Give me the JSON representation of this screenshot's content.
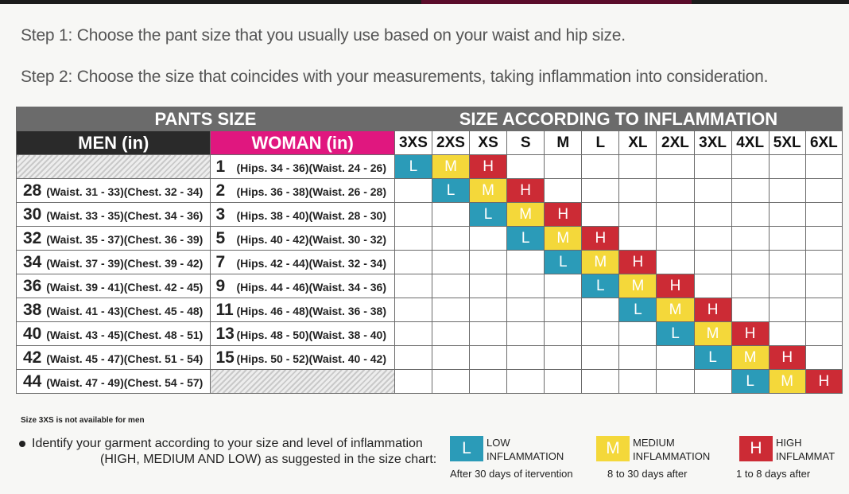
{
  "step1": "Step 1: Choose the pant size that you usually use based on your waist and hip size.",
  "step2": "Step 2: Choose the size that coincides with your measurements, taking inflammation into consideration.",
  "table": {
    "pants_header": "PANTS SIZE",
    "inflammation_header": "SIZE ACCORDING TO INFLAMMATION",
    "men_header": "MEN (in)",
    "woman_header": "WOMAN (in)",
    "sizes": [
      "3XS",
      "2XS",
      "XS",
      "S",
      "M",
      "L",
      "XL",
      "2XL",
      "3XL",
      "4XL",
      "5XL",
      "6XL"
    ],
    "rows": [
      {
        "men_num": "",
        "men_desc": "",
        "woman_num": "1",
        "woman_desc": "(Hips. 34 - 36)(Waist. 24 - 26)",
        "start": 0
      },
      {
        "men_num": "28",
        "men_desc": "(Waist. 31 - 33)(Chest. 32 - 34)",
        "woman_num": "2",
        "woman_desc": "(Hips. 36 - 38)(Waist. 26 - 28)",
        "start": 1
      },
      {
        "men_num": "30",
        "men_desc": "(Waist. 33 - 35)(Chest. 34 - 36)",
        "woman_num": "3",
        "woman_desc": "(Hips. 38 - 40)(Waist. 28 - 30)",
        "start": 2
      },
      {
        "men_num": "32",
        "men_desc": "(Waist. 35 - 37)(Chest. 36 - 39)",
        "woman_num": "5",
        "woman_desc": "(Hips. 40 - 42)(Waist. 30 - 32)",
        "start": 3
      },
      {
        "men_num": "34",
        "men_desc": "(Waist. 37 - 39)(Chest. 39 - 42)",
        "woman_num": "7",
        "woman_desc": "(Hips. 42 - 44)(Waist. 32 - 34)",
        "start": 4
      },
      {
        "men_num": "36",
        "men_desc": "(Waist. 39 - 41)(Chest. 42 - 45)",
        "woman_num": "9",
        "woman_desc": "(Hips. 44 - 46)(Waist. 34 - 36)",
        "start": 5
      },
      {
        "men_num": "38",
        "men_desc": "(Waist. 41 - 43)(Chest. 45 - 48)",
        "woman_num": "11",
        "woman_desc": "(Hips. 46 - 48)(Waist. 36 - 38)",
        "start": 6
      },
      {
        "men_num": "40",
        "men_desc": "(Waist. 43 - 45)(Chest. 48 - 51)",
        "woman_num": "13",
        "woman_desc": "(Hips. 48 - 50)(Waist. 38 - 40)",
        "start": 7
      },
      {
        "men_num": "42",
        "men_desc": "(Waist. 45 - 47)(Chest. 51 - 54)",
        "woman_num": "15",
        "woman_desc": "(Hips. 50 - 52)(Waist. 40 - 42)",
        "start": 8
      },
      {
        "men_num": "44",
        "men_desc": "(Waist. 47 - 49)(Chest. 54 - 57)",
        "woman_num": "",
        "woman_desc": "",
        "start": 9
      }
    ]
  },
  "note": "Size 3XS is not available for men",
  "identify": {
    "line1": "Identify your garment according to  your size and  level of inflammation",
    "line2": "(HIGH, MEDIUM AND LOW) as suggested in the size chart:"
  },
  "legend": {
    "low": {
      "letter": "L",
      "line1": "LOW",
      "line2": "INFLAMMATION",
      "caption": "After 30 days of itervention",
      "color": "#2b9bb8"
    },
    "medium": {
      "letter": "M",
      "line1": "MEDIUM",
      "line2": "INFLAMMATION",
      "caption": "8 to 30 days after",
      "color": "#f4d83a"
    },
    "high": {
      "letter": "H",
      "line1": "HIGH",
      "line2": "INFLAMMAT",
      "caption": "1 to 8 days after",
      "color": "#cc2b35"
    }
  }
}
